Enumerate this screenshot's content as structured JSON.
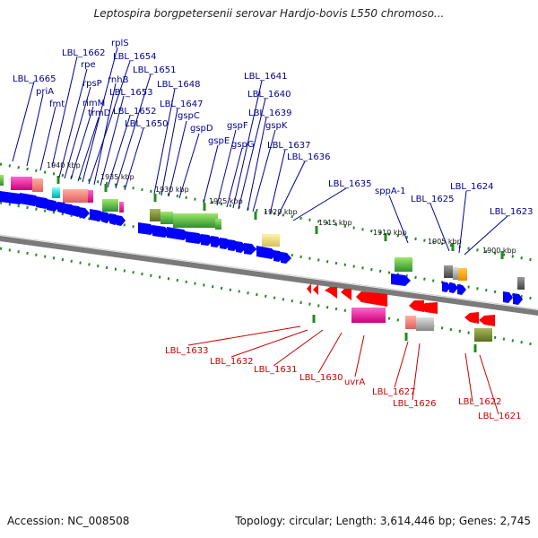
{
  "title": "Leptospira borgpetersenii serovar Hardjo-bovis L550 chromoso...",
  "footer": {
    "accession": "Accession: NC_008508",
    "summary": "Topology: circular; Length: 3,614,446 bp; Genes: 2,745"
  },
  "colors": {
    "forward_arrow": "#0000ff",
    "reverse_arrow": "#ff0000",
    "forward_label": "#00008b",
    "reverse_label": "#cc0000",
    "tick": "#228b22",
    "backbone": "#808080"
  },
  "kbp_labels": [
    "1940 kbp",
    "1935 kbp",
    "1930 kbp",
    "1925 kbp",
    "1920 kbp",
    "1915 kbp",
    "1910 kbp",
    "1905 kbp",
    "1900 kbp"
  ],
  "forward_genes": [
    "LBL_1665",
    "priA",
    "fmt",
    "LBL_1662",
    "rpe",
    "rpsP",
    "rimM",
    "trmD",
    "rplS",
    "LBL_1654",
    "rnhB",
    "LBL_1653",
    "LBL_1652",
    "LBL_1651",
    "LBL_1650",
    "LBL_1648",
    "LBL_1647",
    "gspC",
    "gspD",
    "gspE",
    "gspF",
    "gspG",
    "LBL_1641",
    "LBL_1640",
    "LBL_1639",
    "gspK",
    "LBL_1637",
    "LBL_1636",
    "LBL_1635",
    "sppA-1",
    "LBL_1625",
    "LBL_1624",
    "LBL_1623"
  ],
  "reverse_genes": [
    "LBL_1633",
    "LBL_1632",
    "LBL_1631",
    "LBL_1630",
    "uvrA",
    "LBL_1627",
    "LBL_1626",
    "LBL_1622",
    "LBL_1621"
  ]
}
